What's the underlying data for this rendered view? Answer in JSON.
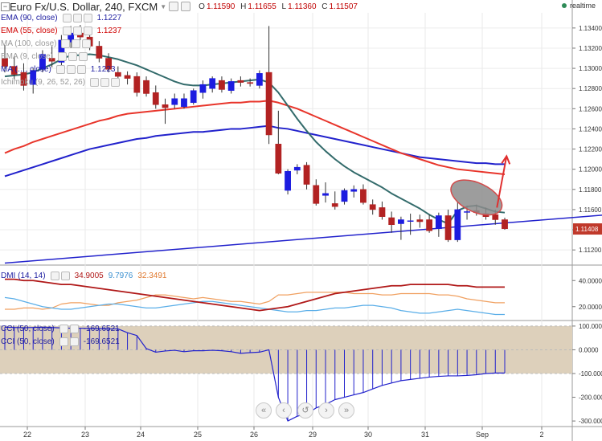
{
  "header": {
    "collapse_symbol": "−",
    "symbol": "Euro Fx/U.S. Dollar, 240, FXCM",
    "open_label": "O",
    "open": "1.11590",
    "high_label": "H",
    "high": "1.11655",
    "low_label": "L",
    "low": "1.11360",
    "close_label": "C",
    "close": "1.11507",
    "realtime": "realtime"
  },
  "overlay_labels": [
    {
      "text": "EMA (90, close)",
      "value": "1.1227",
      "color": "#1c1ca0"
    },
    {
      "text": "EMA (55, close)",
      "value": "1.1237",
      "color": "#d00000"
    },
    {
      "text": "MA (100, close)",
      "value": "",
      "color": "#999999"
    },
    {
      "text": "EMA (9, close)",
      "value": "",
      "color": "#999999"
    },
    {
      "text": "MA (…, close)",
      "value": "1.1223",
      "color": "#1c1ca0"
    },
    {
      "text": "Ichimoku (9, 26, 52, 26)",
      "value": "",
      "color": "#999999"
    }
  ],
  "dmi_label": {
    "text": "DMI (14, 14)",
    "values": [
      "34.9005",
      "9.7976",
      "32.3491"
    ]
  },
  "cci_labels": [
    {
      "text": "CCI (50, close)",
      "value": "-169.6521"
    },
    {
      "text": "CCI (50, close)",
      "value": "-169.6521"
    }
  ],
  "nav": {
    "first": "«",
    "prev": "‹",
    "reset": "↺",
    "next": "›",
    "last": "»"
  },
  "colors": {
    "bull": "#1c1ce0",
    "bear": "#b22222",
    "ema90": "#2222cc",
    "ema55": "#e8352b",
    "ema9": "#336b6b",
    "trendline": "#2222cc",
    "dmi_adx": "#b01818",
    "dmi_plus": "#5aaee8",
    "dmi_minus": "#f0a060",
    "cci": "#2222cc",
    "cci_band": "#ddd0bb",
    "arrow": "#e03030"
  },
  "chart_data": [
    {
      "type": "candlestick",
      "title": "Euro Fx/U.S. Dollar, 240, FXCM",
      "ylim": [
        1.1105,
        1.1355
      ],
      "y_ticks": [
        "1.13400",
        "1.13200",
        "1.13000",
        "1.12800",
        "1.12600",
        "1.12400",
        "1.12200",
        "1.12000",
        "1.11800",
        "1.11600",
        "1.11400",
        "1.11200"
      ],
      "last_price_label": "1.11408",
      "x_ticks": [
        "22",
        "23",
        "24",
        "25",
        "26",
        "29",
        "30",
        "31",
        "Sep",
        "2"
      ],
      "candles": [
        [
          1.131,
          1.1323,
          1.1296,
          1.1302
        ],
        [
          1.1302,
          1.1312,
          1.1289,
          1.1294
        ],
        [
          1.1296,
          1.1305,
          1.1278,
          1.1283
        ],
        [
          1.1284,
          1.13,
          1.1275,
          1.1298
        ],
        [
          1.1299,
          1.1318,
          1.1296,
          1.1314
        ],
        [
          1.131,
          1.1322,
          1.1301,
          1.1307
        ],
        [
          1.1306,
          1.1333,
          1.1302,
          1.1328
        ],
        [
          1.1326,
          1.1342,
          1.132,
          1.1335
        ],
        [
          1.1335,
          1.1343,
          1.1328,
          1.1331
        ],
        [
          1.1331,
          1.1338,
          1.1318,
          1.1322
        ],
        [
          1.1322,
          1.1327,
          1.1306,
          1.131
        ],
        [
          1.131,
          1.1315,
          1.1296,
          1.1299
        ],
        [
          1.1296,
          1.1302,
          1.1288,
          1.1292
        ],
        [
          1.1293,
          1.1297,
          1.1284,
          1.129
        ],
        [
          1.1292,
          1.1296,
          1.1272,
          1.1276
        ],
        [
          1.1288,
          1.1292,
          1.1272,
          1.1275
        ],
        [
          1.1276,
          1.1283,
          1.126,
          1.1264
        ],
        [
          1.1264,
          1.127,
          1.1245,
          1.1261
        ],
        [
          1.1264,
          1.1275,
          1.126,
          1.127
        ],
        [
          1.1262,
          1.1275,
          1.126,
          1.127
        ],
        [
          1.1266,
          1.128,
          1.1264,
          1.1278
        ],
        [
          1.1276,
          1.1288,
          1.127,
          1.1284
        ],
        [
          1.128,
          1.1292,
          1.1276,
          1.129
        ],
        [
          1.1288,
          1.1292,
          1.1276,
          1.1279
        ],
        [
          1.1278,
          1.129,
          1.1275,
          1.1287
        ],
        [
          1.1288,
          1.1292,
          1.1282,
          1.1286
        ],
        [
          1.1286,
          1.129,
          1.1282,
          1.1285
        ],
        [
          1.1283,
          1.1298,
          1.128,
          1.1295
        ],
        [
          1.1296,
          1.1342,
          1.1225,
          1.1234
        ],
        [
          1.1225,
          1.1258,
          1.1195,
          1.1196
        ],
        [
          1.1179,
          1.12,
          1.1175,
          1.1198
        ],
        [
          1.1199,
          1.1205,
          1.1195,
          1.1202
        ],
        [
          1.1204,
          1.1207,
          1.118,
          1.1185
        ],
        [
          1.1184,
          1.119,
          1.1164,
          1.1166
        ],
        [
          1.1174,
          1.1187,
          1.1167,
          1.1176
        ],
        [
          1.1166,
          1.1178,
          1.116,
          1.1163
        ],
        [
          1.1168,
          1.1181,
          1.1165,
          1.1179
        ],
        [
          1.1178,
          1.1184,
          1.1172,
          1.118
        ],
        [
          1.118,
          1.1185,
          1.1165,
          1.1167
        ],
        [
          1.1165,
          1.117,
          1.1155,
          1.116
        ],
        [
          1.1162,
          1.1168,
          1.115,
          1.1153
        ],
        [
          1.1152,
          1.1158,
          1.1137,
          1.1145
        ],
        [
          1.1146,
          1.1153,
          1.113,
          1.115
        ],
        [
          1.1149,
          1.1156,
          1.1135,
          1.1149
        ],
        [
          1.115,
          1.1155,
          1.1142,
          1.1148
        ],
        [
          1.115,
          1.1155,
          1.1137,
          1.1139
        ],
        [
          1.1141,
          1.1157,
          1.1133,
          1.1154
        ],
        [
          1.1154,
          1.116,
          1.1128,
          1.113
        ],
        [
          1.113,
          1.1168,
          1.1128,
          1.116
        ],
        [
          1.1158,
          1.1164,
          1.115,
          1.1158
        ],
        [
          1.1159,
          1.1165,
          1.1154,
          1.1157
        ],
        [
          1.1156,
          1.1162,
          1.115,
          1.1153
        ],
        [
          1.1155,
          1.116,
          1.1145,
          1.115
        ],
        [
          1.115,
          1.1152,
          1.114,
          1.1141
        ]
      ],
      "series": [
        {
          "name": "EMA (9, close)",
          "values": [
            1.1292,
            1.1293,
            1.1294,
            1.1296,
            1.13,
            1.1304,
            1.1309,
            1.1313,
            1.1313,
            1.1314,
            1.1313,
            1.1311,
            1.1309,
            1.1306,
            1.1303,
            1.1299,
            1.1295,
            1.1291,
            1.1287,
            1.1284,
            1.1283,
            1.1283,
            1.1284,
            1.1285,
            1.1286,
            1.1287,
            1.1288,
            1.1289,
            1.1286,
            1.1276,
            1.1263,
            1.125,
            1.1238,
            1.1227,
            1.1218,
            1.121,
            1.1203,
            1.1197,
            1.1192,
            1.1187,
            1.1182,
            1.1176,
            1.1171,
            1.1166,
            1.1161,
            1.1155,
            1.115,
            1.1146,
            1.1159,
            1.1163,
            1.1164,
            1.1161,
            1.1158,
            1.1157
          ]
        },
        {
          "name": "EMA (55, close)",
          "values": [
            1.1216,
            1.122,
            1.1223,
            1.1227,
            1.123,
            1.1233,
            1.1236,
            1.1239,
            1.1242,
            1.1245,
            1.1248,
            1.125,
            1.1253,
            1.1255,
            1.1256,
            1.1257,
            1.1258,
            1.1259,
            1.126,
            1.1261,
            1.1262,
            1.1263,
            1.1264,
            1.1265,
            1.1266,
            1.1266,
            1.1267,
            1.1267,
            1.1268,
            1.1266,
            1.1263,
            1.126,
            1.1256,
            1.1252,
            1.1248,
            1.1244,
            1.124,
            1.1236,
            1.1232,
            1.1228,
            1.1224,
            1.122,
            1.1216,
            1.1213,
            1.121,
            1.1207,
            1.1204,
            1.1202,
            1.12,
            1.1199,
            1.1198,
            1.1197,
            1.1196,
            1.1195
          ]
        },
        {
          "name": "EMA (90, close)",
          "values": [
            1.1193,
            1.1196,
            1.1199,
            1.1202,
            1.1205,
            1.1208,
            1.1211,
            1.1214,
            1.1217,
            1.122,
            1.1222,
            1.1224,
            1.1226,
            1.1228,
            1.123,
            1.1231,
            1.1233,
            1.1234,
            1.1235,
            1.1236,
            1.1237,
            1.1237,
            1.1238,
            1.1239,
            1.124,
            1.124,
            1.1241,
            1.1242,
            1.1243,
            1.1241,
            1.124,
            1.1238,
            1.1236,
            1.1234,
            1.1232,
            1.123,
            1.1228,
            1.1226,
            1.1224,
            1.1222,
            1.122,
            1.1218,
            1.1216,
            1.1214,
            1.1212,
            1.1211,
            1.121,
            1.1209,
            1.1208,
            1.1207,
            1.1206,
            1.1206,
            1.1205,
            1.1205
          ]
        }
      ],
      "trendline": [
        [
          0,
          1.1107
        ],
        [
          60,
          1.1152
        ]
      ]
    },
    {
      "type": "line",
      "title": "DMI (14, 14)",
      "ylim": [
        10,
        50
      ],
      "y_ticks": [
        "40.0000",
        "20.0000"
      ],
      "series": [
        {
          "name": "ADX",
          "values": [
            41,
            41,
            40,
            40,
            39,
            38,
            37,
            37,
            36,
            35,
            34,
            33,
            32,
            31,
            30,
            29,
            28,
            27,
            26,
            25,
            24,
            23,
            22,
            21,
            20,
            19,
            18,
            17,
            18,
            19,
            20,
            22,
            24,
            26,
            28,
            30,
            31,
            32,
            33,
            34,
            35,
            36,
            36,
            37,
            37,
            37,
            37,
            37,
            36,
            36,
            35,
            35,
            35,
            35
          ]
        },
        {
          "name": "+DI",
          "values": [
            27,
            26,
            24,
            22,
            20,
            19,
            18,
            18,
            19,
            20,
            21,
            22,
            22,
            21,
            20,
            19,
            19,
            20,
            21,
            22,
            23,
            24,
            24,
            23,
            22,
            21,
            20,
            19,
            18,
            17,
            16,
            16,
            17,
            17,
            18,
            19,
            19,
            20,
            21,
            21,
            20,
            19,
            17,
            16,
            15,
            15,
            16,
            17,
            18,
            17,
            16,
            15,
            14,
            14
          ]
        },
        {
          "name": "-DI",
          "values": [
            18,
            18,
            19,
            19,
            18,
            19,
            22,
            23,
            23,
            22,
            21,
            21,
            23,
            24,
            25,
            27,
            29,
            29,
            28,
            27,
            26,
            27,
            26,
            25,
            24,
            24,
            23,
            22,
            24,
            29,
            29,
            30,
            31,
            31,
            31,
            31,
            31,
            30,
            30,
            30,
            29,
            29,
            30,
            30,
            30,
            30,
            29,
            29,
            28,
            26,
            25,
            24,
            23,
            23
          ]
        }
      ]
    },
    {
      "type": "bar",
      "title": "CCI (50, close)",
      "ylim": [
        -320,
        120
      ],
      "y_ticks": [
        "100.0000",
        "0.0000",
        "-100.0000",
        "-200.0000",
        "-300.0000"
      ],
      "band": [
        -100,
        100
      ],
      "values": [
        95,
        94,
        93,
        94,
        95,
        94,
        92,
        91,
        91,
        90,
        89,
        88,
        88,
        72,
        60,
        5,
        -10,
        -5,
        -2,
        -8,
        -4,
        -4,
        -2,
        -4,
        -8,
        -15,
        -12,
        -10,
        0,
        -200,
        -300,
        -280,
        -270,
        -245,
        -230,
        -210,
        -200,
        -190,
        -180,
        -165,
        -150,
        -140,
        -130,
        -125,
        -120,
        -115,
        -112,
        -110,
        -110,
        -108,
        -105,
        -100,
        -98,
        -98
      ]
    }
  ]
}
